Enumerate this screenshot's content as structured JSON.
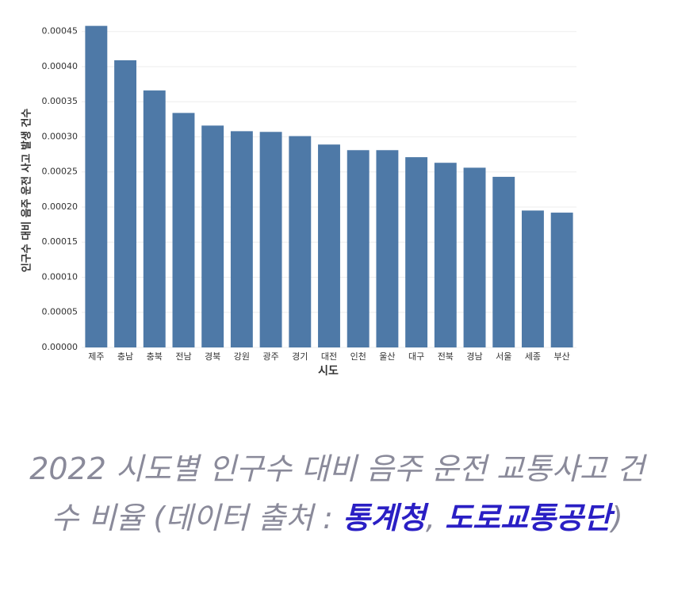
{
  "chart_data": {
    "type": "bar",
    "x_label": "시도",
    "y_label": "인구수 대비 음주 운전 사고 발생 건수",
    "categories": [
      "제주",
      "충남",
      "충북",
      "전남",
      "경북",
      "강원",
      "광주",
      "경기",
      "대전",
      "인천",
      "울산",
      "대구",
      "전북",
      "경남",
      "서울",
      "세종",
      "부산"
    ],
    "values": [
      0.000458,
      0.000409,
      0.000366,
      0.000334,
      0.000316,
      0.000308,
      0.000307,
      0.000301,
      0.000289,
      0.000281,
      0.000281,
      0.000271,
      0.000263,
      0.000256,
      0.000243,
      0.000195,
      0.000192
    ],
    "color": "#4e79a7",
    "ylim": [
      0,
      0.00047
    ],
    "yticks": [
      {
        "value": 0,
        "label": "0.00000"
      },
      5e-05,
      {
        "value": 0.0001,
        "label": "0.00010"
      },
      0.00015,
      {
        "value": 0.0002,
        "label": "0.00020"
      },
      0.00025,
      {
        "value": 0.0003,
        "label": "0.00030"
      },
      0.00035,
      {
        "value": 0.0004,
        "label": "0.00040"
      },
      0.00045
    ],
    "grid": true
  },
  "caption": [
    "2022 시도별 인구수 대비 음주 운전 교통사고 건수 비율 (데이터 출처 : ",
    "통계청",
    ", ",
    "도로교통공단",
    ")"
  ]
}
